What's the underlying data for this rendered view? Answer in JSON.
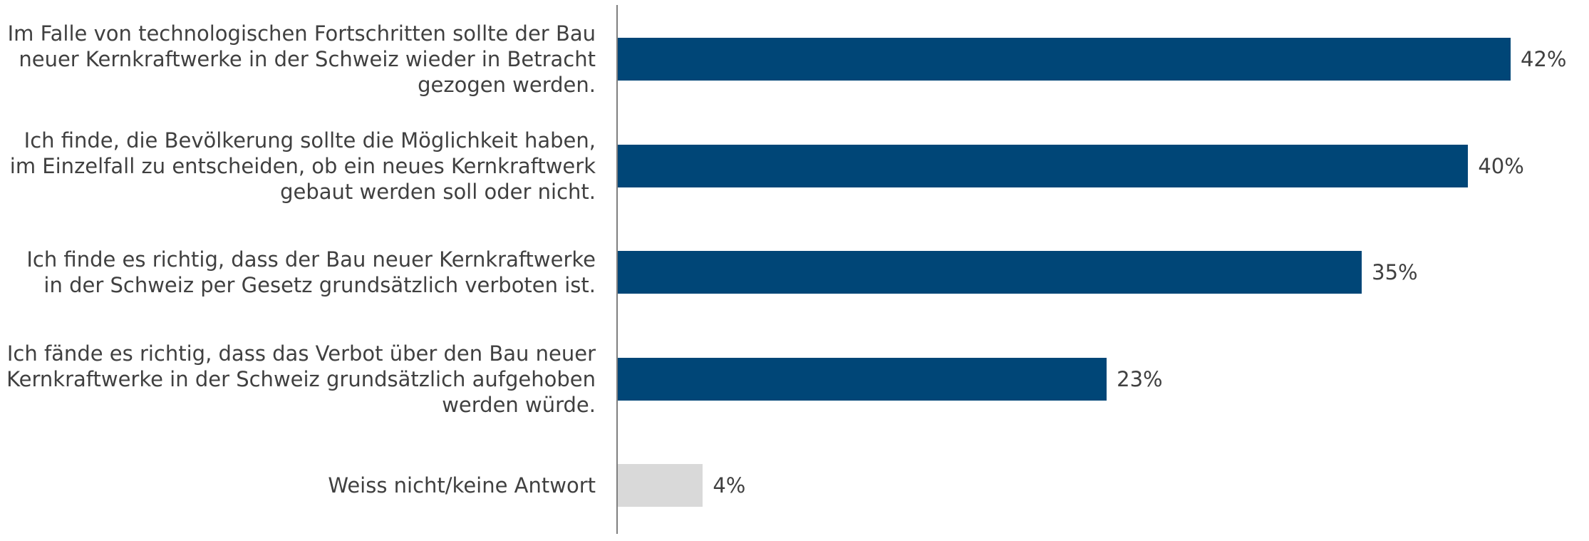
{
  "chart_data": {
    "type": "bar",
    "orientation": "horizontal",
    "categories": [
      "Im Falle von technologischen Fortschritten sollte der Bau neuer Kernkraftwerke in der Schweiz wieder in Betracht gezogen werden.",
      "Ich finde, die Bevölkerung sollte die Möglichkeit haben, im Einzelfall zu entscheiden, ob ein neues Kernkraftwerk gebaut werden soll oder nicht.",
      "Ich finde es richtig, dass der Bau neuer Kernkraftwerke in der Schweiz per Gesetz grundsätzlich verboten ist.",
      "Ich fände es richtig, dass das Verbot über den Bau neuer Kernkraftwerke in der Schweiz grundsätzlich aufgehoben werden würde.",
      "Weiss nicht/keine Antwort"
    ],
    "values": [
      42,
      40,
      35,
      23,
      4
    ],
    "value_labels": [
      "42%",
      "40%",
      "35%",
      "23%",
      "4%"
    ],
    "colors": [
      "#004677",
      "#004677",
      "#004677",
      "#004677",
      "#d9d9d9"
    ]
  }
}
